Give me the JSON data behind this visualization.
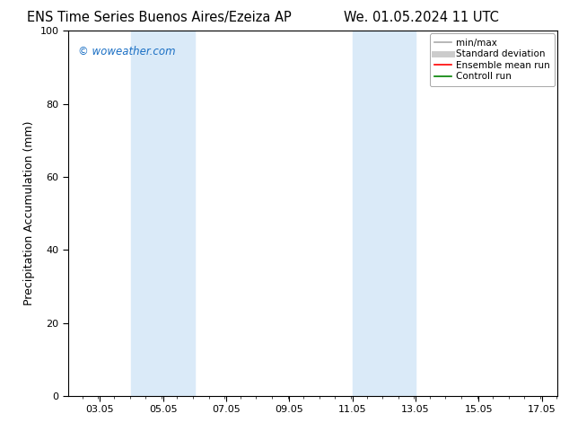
{
  "title_left": "ENS Time Series Buenos Aires/Ezeiza AP",
  "title_right": "We. 01.05.2024 11 UTC",
  "ylabel": "Precipitation Accumulation (mm)",
  "ylim": [
    0,
    100
  ],
  "yticks": [
    0,
    20,
    40,
    60,
    80,
    100
  ],
  "xlim_start": 2.05,
  "xlim_end": 17.55,
  "xtick_positions": [
    3.05,
    5.05,
    7.05,
    9.05,
    11.05,
    13.05,
    15.05,
    17.05
  ],
  "xtick_labels": [
    "03.05",
    "05.05",
    "07.05",
    "09.05",
    "11.05",
    "13.05",
    "15.05",
    "17.05"
  ],
  "shaded_bands": [
    {
      "x_start": 4.05,
      "x_end": 6.05
    },
    {
      "x_start": 11.05,
      "x_end": 13.05
    }
  ],
  "shaded_color": "#daeaf8",
  "watermark_text": "© woweather.com",
  "watermark_color": "#1a6fc4",
  "legend_entries": [
    {
      "label": "min/max",
      "color": "#aaaaaa",
      "lw": 1.2,
      "linestyle": "-"
    },
    {
      "label": "Standard deviation",
      "color": "#cccccc",
      "lw": 5,
      "linestyle": "-"
    },
    {
      "label": "Ensemble mean run",
      "color": "#ff0000",
      "lw": 1.2,
      "linestyle": "-"
    },
    {
      "label": "Controll run",
      "color": "#008000",
      "lw": 1.2,
      "linestyle": "-"
    }
  ],
  "background_color": "#ffffff",
  "axes_bg_color": "#ffffff",
  "title_fontsize": 10.5,
  "label_fontsize": 9,
  "tick_fontsize": 8,
  "minor_tick_interval": 0.5,
  "legend_fontsize": 7.5
}
